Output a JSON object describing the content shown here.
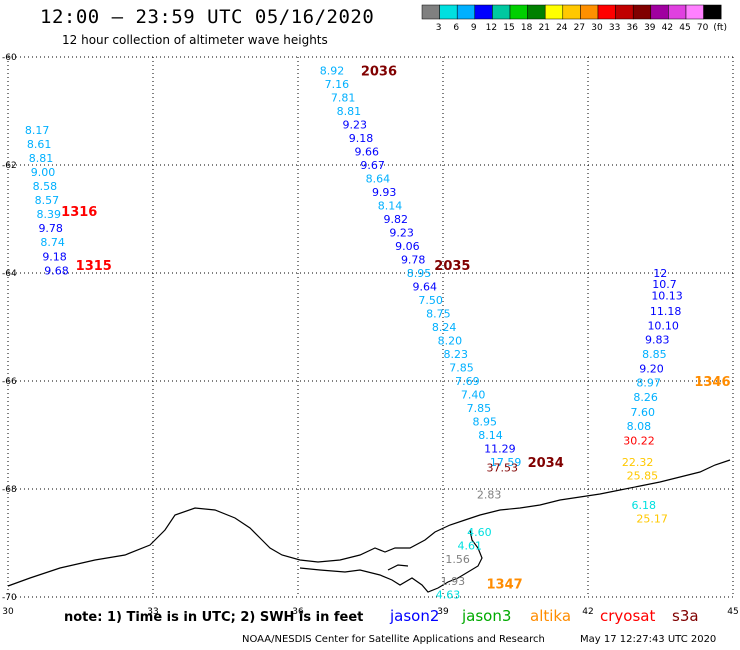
{
  "title": "12:00 – 23:59 UTC 05/16/2020",
  "subtitle": "12 hour collection of altimeter wave heights",
  "footer_note": "note:  1) Time is in UTC;  2) SWH is in feet",
  "credit": "NOAA/NESDIS Center for Satellite Applications and Research",
  "timestamp": "May 17 12:27:43 UTC 2020",
  "satellites": [
    {
      "name": "jason2",
      "color": "#0000ff"
    },
    {
      "name": "jason3",
      "color": "#00aa00"
    },
    {
      "name": "altika",
      "color": "#ff8c00"
    },
    {
      "name": "cryosat",
      "color": "#ff0000"
    },
    {
      "name": "s3a",
      "color": "#800000"
    }
  ],
  "colorbar": {
    "colors": [
      "#808080",
      "#00e0e0",
      "#00b0ff",
      "#0000ff",
      "#00c8a0",
      "#00d000",
      "#008000",
      "#ffff00",
      "#ffc800",
      "#ff9000",
      "#ff0000",
      "#c00000",
      "#800000",
      "#a000a0",
      "#e040e0",
      "#ff80ff",
      "#000000"
    ],
    "labels": [
      "3",
      "6",
      "9",
      "12",
      "15",
      "18",
      "21",
      "24",
      "27",
      "30",
      "33",
      "36",
      "39",
      "42",
      "45",
      "70",
      "(ft)"
    ]
  },
  "chart_data": {
    "type": "scatter",
    "title": "12:00 – 23:59 UTC 05/16/2020",
    "subtitle": "12 hour collection of altimeter wave heights",
    "xlabel": "",
    "ylabel": "",
    "xlim": [
      30,
      45
    ],
    "ylim": [
      -70,
      -60
    ],
    "xticks": [
      30,
      33,
      36,
      39,
      42,
      45
    ],
    "yticks": [
      -60,
      -62,
      -64,
      -66,
      -68,
      -70
    ],
    "grid": true,
    "units": "ft",
    "tracks": [
      {
        "time": "1316/1315",
        "points": [
          {
            "x": 30.35,
            "y": -61.35,
            "v": "8.17",
            "c": "#00b0ff"
          },
          {
            "x": 30.39,
            "y": -61.61,
            "v": "8.61",
            "c": "#00b0ff"
          },
          {
            "x": 30.43,
            "y": -61.87,
            "v": "8.81",
            "c": "#00b0ff"
          },
          {
            "x": 30.47,
            "y": -62.13,
            "v": "9.00",
            "c": "#00b0ff"
          },
          {
            "x": 30.51,
            "y": -62.39,
            "v": "8.58",
            "c": "#00b0ff"
          },
          {
            "x": 30.55,
            "y": -62.65,
            "v": "8.57",
            "c": "#00b0ff"
          },
          {
            "x": 30.59,
            "y": -62.91,
            "v": "8.39",
            "c": "#00b0ff"
          },
          {
            "x": 30.63,
            "y": -63.17,
            "v": "9.78",
            "c": "#0000ff"
          },
          {
            "x": 30.67,
            "y": -63.43,
            "v": "8.74",
            "c": "#00b0ff"
          },
          {
            "x": 30.71,
            "y": -63.69,
            "v": "9.18",
            "c": "#0000ff"
          },
          {
            "x": 30.75,
            "y": -63.95,
            "v": "9.68",
            "c": "#0000ff"
          }
        ]
      },
      {
        "time": "2036/2035/2034",
        "points": [
          {
            "x": 36.45,
            "y": -60.25,
            "v": "8.92",
            "c": "#00b0ff"
          },
          {
            "x": 36.55,
            "y": -60.5,
            "v": "7.16",
            "c": "#00b0ff"
          },
          {
            "x": 36.68,
            "y": -60.75,
            "v": "7.81",
            "c": "#00b0ff"
          },
          {
            "x": 36.8,
            "y": -61.0,
            "v": "8.81",
            "c": "#00b0ff"
          },
          {
            "x": 36.92,
            "y": -61.25,
            "v": "9.23",
            "c": "#0000ff"
          },
          {
            "x": 37.05,
            "y": -61.5,
            "v": "9.18",
            "c": "#0000ff"
          },
          {
            "x": 37.17,
            "y": -61.75,
            "v": "9.66",
            "c": "#0000ff"
          },
          {
            "x": 37.29,
            "y": -62.0,
            "v": "9.67",
            "c": "#0000ff"
          },
          {
            "x": 37.4,
            "y": -62.25,
            "v": "8.64",
            "c": "#00b0ff"
          },
          {
            "x": 37.53,
            "y": -62.5,
            "v": "9.93",
            "c": "#0000ff"
          },
          {
            "x": 37.65,
            "y": -62.75,
            "v": "8.14",
            "c": "#00b0ff"
          },
          {
            "x": 37.77,
            "y": -63.0,
            "v": "9.82",
            "c": "#0000ff"
          },
          {
            "x": 37.89,
            "y": -63.25,
            "v": "9.23",
            "c": "#0000ff"
          },
          {
            "x": 38.01,
            "y": -63.5,
            "v": "9.06",
            "c": "#0000ff"
          },
          {
            "x": 38.13,
            "y": -63.75,
            "v": "9.78",
            "c": "#0000ff"
          },
          {
            "x": 38.25,
            "y": -64.0,
            "v": "8.95",
            "c": "#00b0ff"
          },
          {
            "x": 38.37,
            "y": -64.25,
            "v": "9.64",
            "c": "#0000ff"
          },
          {
            "x": 38.49,
            "y": -64.5,
            "v": "7.50",
            "c": "#00b0ff"
          },
          {
            "x": 38.65,
            "y": -64.75,
            "v": "8.75",
            "c": "#00b0ff"
          },
          {
            "x": 38.77,
            "y": -65.0,
            "v": "8.24",
            "c": "#00b0ff"
          },
          {
            "x": 38.89,
            "y": -65.25,
            "v": "8.20",
            "c": "#00b0ff"
          },
          {
            "x": 39.01,
            "y": -65.5,
            "v": "8.23",
            "c": "#00b0ff"
          },
          {
            "x": 39.13,
            "y": -65.75,
            "v": "7.85",
            "c": "#00b0ff"
          },
          {
            "x": 39.25,
            "y": -66.0,
            "v": "7.69",
            "c": "#00b0ff"
          },
          {
            "x": 39.37,
            "y": -66.25,
            "v": "7.40",
            "c": "#00b0ff"
          },
          {
            "x": 39.49,
            "y": -66.5,
            "v": "7.85",
            "c": "#00b0ff"
          },
          {
            "x": 39.61,
            "y": -66.75,
            "v": "8.95",
            "c": "#00b0ff"
          },
          {
            "x": 39.73,
            "y": -67.0,
            "v": "8.14",
            "c": "#00b0ff"
          },
          {
            "x": 39.85,
            "y": -67.25,
            "v": "11.29",
            "c": "#0000ff"
          },
          {
            "x": 39.97,
            "y": -67.5,
            "v": "17.59",
            "c": "#00b0ff"
          },
          {
            "x": 39.9,
            "y": -67.6,
            "v": "37.53",
            "c": "#800000"
          },
          {
            "x": 39.7,
            "y": -68.1,
            "v": "2.83",
            "c": "#808080"
          }
        ]
      },
      {
        "time": "1346",
        "points": [
          {
            "x": 43.35,
            "y": -64.0,
            "v": "12",
            "c": "#0000ff"
          },
          {
            "x": 43.33,
            "y": -64.2,
            "v": "10.7",
            "c": "#0000ff"
          },
          {
            "x": 43.31,
            "y": -64.42,
            "v": "10.13",
            "c": "#0000ff"
          },
          {
            "x": 43.28,
            "y": -64.7,
            "v": "11.18",
            "c": "#0000ff"
          },
          {
            "x": 43.23,
            "y": -64.97,
            "v": "10.10",
            "c": "#0000ff"
          },
          {
            "x": 43.18,
            "y": -65.23,
            "v": "9.83",
            "c": "#0000ff"
          },
          {
            "x": 43.12,
            "y": -65.5,
            "v": "8.85",
            "c": "#00b0ff"
          },
          {
            "x": 43.06,
            "y": -65.77,
            "v": "9.20",
            "c": "#0000ff"
          },
          {
            "x": 43.0,
            "y": -66.03,
            "v": "8.97",
            "c": "#00b0ff"
          },
          {
            "x": 42.94,
            "y": -66.3,
            "v": "8.26",
            "c": "#00b0ff"
          },
          {
            "x": 42.88,
            "y": -66.57,
            "v": "7.60",
            "c": "#00b0ff"
          },
          {
            "x": 42.8,
            "y": -66.83,
            "v": "8.08",
            "c": "#00b0ff"
          },
          {
            "x": 42.73,
            "y": -67.1,
            "v": "30.22",
            "c": "#ff0000"
          },
          {
            "x": 42.7,
            "y": -67.5,
            "v": "22.32",
            "c": "#ffc800"
          },
          {
            "x": 42.8,
            "y": -67.75,
            "v": "25.85",
            "c": "#ffc800"
          }
        ]
      },
      {
        "time": "1347",
        "points": [
          {
            "x": 42.9,
            "y": -68.3,
            "v": "6.18",
            "c": "#00e0e0"
          },
          {
            "x": 43.0,
            "y": -68.55,
            "v": "25.17",
            "c": "#ffc800"
          },
          {
            "x": 39.5,
            "y": -68.8,
            "v": "4.60",
            "c": "#00e0e0"
          },
          {
            "x": 39.3,
            "y": -69.05,
            "v": "4.61",
            "c": "#00e0e0"
          },
          {
            "x": 39.05,
            "y": -69.3,
            "v": "1.56",
            "c": "#808080"
          },
          {
            "x": 38.95,
            "y": -69.7,
            "v": "1.93",
            "c": "#808080"
          },
          {
            "x": 38.85,
            "y": -69.95,
            "v": "4.63",
            "c": "#00e0e0"
          }
        ]
      }
    ],
    "time_labels": [
      {
        "x": 31.1,
        "y": -62.85,
        "text": "1316",
        "c": "#ff0000"
      },
      {
        "x": 31.4,
        "y": -63.85,
        "text": "1315",
        "c": "#ff0000"
      },
      {
        "x": 37.3,
        "y": -60.25,
        "text": "2036",
        "c": "#800000"
      },
      {
        "x": 38.82,
        "y": -63.85,
        "text": "2035",
        "c": "#800000"
      },
      {
        "x": 40.75,
        "y": -67.5,
        "text": "2034",
        "c": "#800000"
      },
      {
        "x": 44.2,
        "y": -66.0,
        "text": "1346",
        "c": "#ff8c00"
      },
      {
        "x": 39.9,
        "y": -69.75,
        "text": "1347",
        "c": "#ff8c00"
      }
    ]
  }
}
